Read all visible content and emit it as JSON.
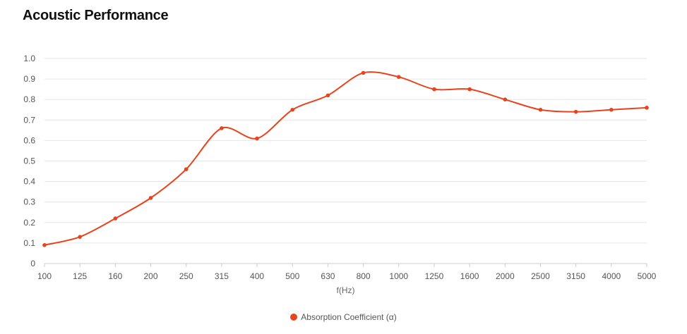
{
  "page": {
    "title": "Acoustic Performance"
  },
  "colors": {
    "series": "#e8431c",
    "grid": "#e6e6e6",
    "axis": "#cccccc"
  },
  "chart_data": {
    "type": "line",
    "title": "Acoustic Performance",
    "xlabel": "f(Hz)",
    "ylabel": "",
    "categories": [
      "100",
      "125",
      "160",
      "200",
      "250",
      "315",
      "400",
      "500",
      "630",
      "800",
      "1000",
      "1250",
      "1600",
      "2000",
      "2500",
      "3150",
      "4000",
      "5000"
    ],
    "series": [
      {
        "name": "Absorption Coefficient (α)",
        "values": [
          0.09,
          0.13,
          0.22,
          0.32,
          0.46,
          0.66,
          0.61,
          0.75,
          0.82,
          0.93,
          0.91,
          0.85,
          0.85,
          0.8,
          0.75,
          0.74,
          0.75,
          0.76
        ]
      }
    ],
    "ylim": [
      0,
      1.0
    ],
    "yticks": [
      "0",
      "0.1",
      "0.2",
      "0.3",
      "0.4",
      "0.5",
      "0.6",
      "0.7",
      "0.8",
      "0.9",
      "1.0"
    ],
    "grid": true,
    "legend": "bottom-center"
  }
}
